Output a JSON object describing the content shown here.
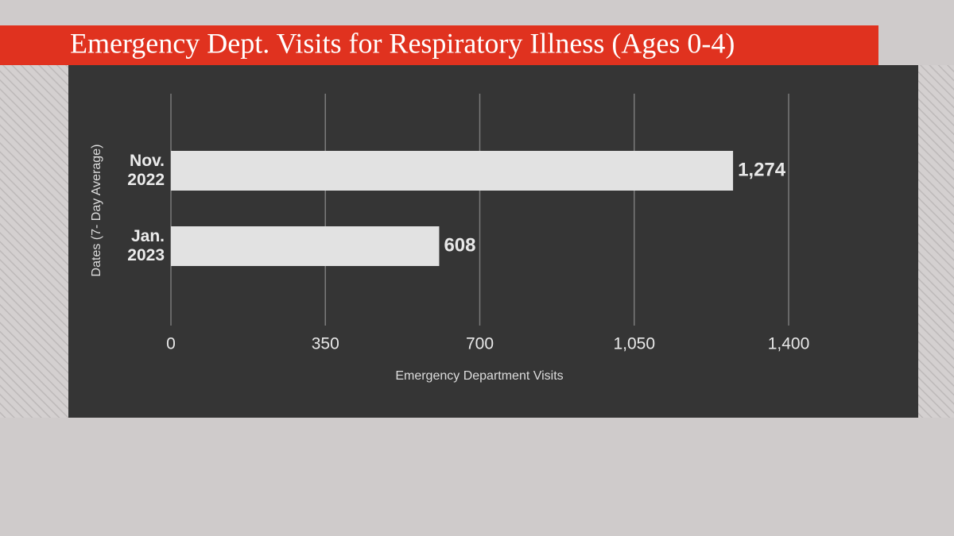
{
  "chart_data": {
    "type": "bar",
    "orientation": "horizontal",
    "title": "Emergency Dept. Visits for Respiratory Illness (Ages 0-4)",
    "x_label": "Emergency Department Visits",
    "y_label": "Dates (7- Day Average)",
    "categories": [
      "Nov. 2022",
      "Jan. 2023"
    ],
    "values": [
      1274,
      608
    ],
    "value_labels": [
      "1,274",
      "608"
    ],
    "color": "#e2e2e2",
    "xlim": [
      0,
      1400
    ],
    "xticks": [
      0,
      350,
      700,
      {
        "value": 1050,
        "label": "1,050"
      },
      {
        "value": 1400,
        "label": "1,400"
      }
    ],
    "grid": true
  }
}
